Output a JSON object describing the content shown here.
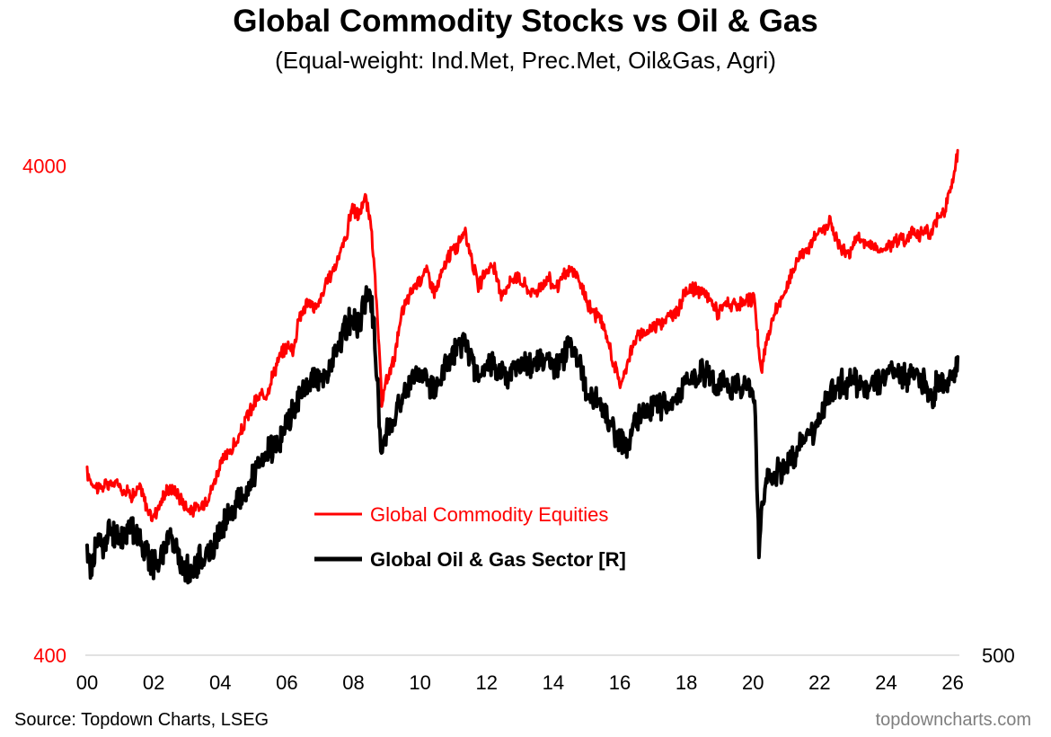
{
  "title": "Global Commodity Stocks vs Oil & Gas",
  "subtitle": "(Equal-weight: Ind.Met, Prec.Met, Oil&Gas, Agri)",
  "source": "Source: Topdown Charts, LSEG",
  "brand": "topdowncharts.com",
  "colors": {
    "commodity": "#ff0000",
    "oilgas": "#000000",
    "axis": "#d9d9d9"
  },
  "chart_data": {
    "type": "line",
    "scale": "log",
    "x_range": [
      2000,
      2026.2
    ],
    "x_ticks": [
      {
        "value": 2000,
        "label": "00"
      },
      {
        "value": 2002,
        "label": "02"
      },
      {
        "value": 2004,
        "label": "04"
      },
      {
        "value": 2006,
        "label": "06"
      },
      {
        "value": 2008,
        "label": "08"
      },
      {
        "value": 2010,
        "label": "10"
      },
      {
        "value": 2012,
        "label": "12"
      },
      {
        "value": 2014,
        "label": "14"
      },
      {
        "value": 2016,
        "label": "16"
      },
      {
        "value": 2018,
        "label": "18"
      },
      {
        "value": 2020,
        "label": "20"
      },
      {
        "value": 2022,
        "label": "22"
      },
      {
        "value": 2024,
        "label": "24"
      },
      {
        "value": 2026,
        "label": "26"
      }
    ],
    "y_left": {
      "range": [
        400,
        5250
      ],
      "ticks": [
        {
          "value": 400,
          "label": "400"
        },
        {
          "value": 4000,
          "label": "4000"
        }
      ]
    },
    "y_right": {
      "range": [
        500,
        1850
      ],
      "ticks": [
        {
          "value": 500,
          "label": "500"
        }
      ]
    },
    "series": [
      {
        "name": "Global Commodity Equities",
        "axis": "left",
        "color": "#ff0000",
        "points": [
          [
            2000.0,
            940
          ],
          [
            2000.15,
            900
          ],
          [
            2000.35,
            880
          ],
          [
            2000.6,
            890
          ],
          [
            2000.9,
            900
          ],
          [
            2001.1,
            870
          ],
          [
            2001.4,
            850
          ],
          [
            2001.6,
            880
          ],
          [
            2001.8,
            800
          ],
          [
            2001.95,
            760
          ],
          [
            2002.2,
            820
          ],
          [
            2002.45,
            880
          ],
          [
            2002.7,
            860
          ],
          [
            2002.9,
            820
          ],
          [
            2003.1,
            790
          ],
          [
            2003.4,
            800
          ],
          [
            2003.7,
            860
          ],
          [
            2004.0,
            980
          ],
          [
            2004.3,
            1050
          ],
          [
            2004.55,
            1100
          ],
          [
            2004.8,
            1230
          ],
          [
            2005.1,
            1330
          ],
          [
            2005.4,
            1380
          ],
          [
            2005.7,
            1580
          ],
          [
            2006.0,
            1720
          ],
          [
            2006.2,
            1680
          ],
          [
            2006.35,
            1950
          ],
          [
            2006.6,
            2100
          ],
          [
            2006.9,
            2050
          ],
          [
            2007.2,
            2300
          ],
          [
            2007.5,
            2550
          ],
          [
            2007.8,
            2900
          ],
          [
            2007.95,
            3300
          ],
          [
            2008.15,
            3150
          ],
          [
            2008.35,
            3450
          ],
          [
            2008.55,
            2950
          ],
          [
            2008.75,
            1800
          ],
          [
            2008.85,
            1300
          ],
          [
            2008.95,
            1420
          ],
          [
            2009.2,
            1600
          ],
          [
            2009.5,
            2050
          ],
          [
            2009.8,
            2250
          ],
          [
            2010.0,
            2350
          ],
          [
            2010.2,
            2450
          ],
          [
            2010.45,
            2200
          ],
          [
            2010.7,
            2450
          ],
          [
            2010.9,
            2650
          ],
          [
            2011.15,
            2750
          ],
          [
            2011.3,
            2950
          ],
          [
            2011.5,
            2700
          ],
          [
            2011.75,
            2250
          ],
          [
            2012.0,
            2450
          ],
          [
            2012.2,
            2500
          ],
          [
            2012.4,
            2200
          ],
          [
            2012.6,
            2250
          ],
          [
            2012.85,
            2400
          ],
          [
            2013.1,
            2300
          ],
          [
            2013.35,
            2200
          ],
          [
            2013.6,
            2250
          ],
          [
            2013.85,
            2350
          ],
          [
            2014.1,
            2250
          ],
          [
            2014.35,
            2400
          ],
          [
            2014.6,
            2450
          ],
          [
            2014.8,
            2300
          ],
          [
            2015.1,
            2050
          ],
          [
            2015.4,
            1950
          ],
          [
            2015.65,
            1750
          ],
          [
            2015.85,
            1550
          ],
          [
            2016.05,
            1420
          ],
          [
            2016.25,
            1620
          ],
          [
            2016.5,
            1780
          ],
          [
            2016.8,
            1830
          ],
          [
            2017.1,
            1900
          ],
          [
            2017.4,
            1950
          ],
          [
            2017.7,
            2000
          ],
          [
            2017.95,
            2200
          ],
          [
            2018.15,
            2250
          ],
          [
            2018.4,
            2200
          ],
          [
            2018.7,
            2150
          ],
          [
            2018.95,
            2000
          ],
          [
            2019.2,
            2100
          ],
          [
            2019.5,
            2050
          ],
          [
            2019.8,
            2100
          ],
          [
            2020.05,
            2150
          ],
          [
            2020.2,
            1600
          ],
          [
            2020.25,
            1500
          ],
          [
            2020.4,
            1750
          ],
          [
            2020.65,
            2000
          ],
          [
            2020.9,
            2150
          ],
          [
            2021.2,
            2450
          ],
          [
            2021.45,
            2650
          ],
          [
            2021.7,
            2750
          ],
          [
            2021.95,
            2900
          ],
          [
            2022.2,
            3000
          ],
          [
            2022.3,
            3100
          ],
          [
            2022.5,
            2850
          ],
          [
            2022.65,
            2700
          ],
          [
            2022.9,
            2650
          ],
          [
            2023.1,
            2850
          ],
          [
            2023.3,
            2800
          ],
          [
            2023.55,
            2750
          ],
          [
            2023.8,
            2700
          ],
          [
            2024.1,
            2750
          ],
          [
            2024.35,
            2850
          ],
          [
            2024.55,
            2800
          ],
          [
            2024.8,
            2950
          ],
          [
            2025.05,
            2900
          ],
          [
            2025.25,
            2950
          ],
          [
            2025.3,
            2800
          ],
          [
            2025.45,
            3050
          ],
          [
            2025.6,
            3150
          ],
          [
            2025.75,
            3250
          ],
          [
            2025.9,
            3550
          ],
          [
            2026.05,
            3850
          ],
          [
            2026.15,
            4300
          ]
        ]
      },
      {
        "name": "Global Oil & Gas Sector [R]",
        "axis": "right",
        "color": "#000000",
        "points": [
          [
            2000.0,
            640
          ],
          [
            2000.1,
            615
          ],
          [
            2000.3,
            660
          ],
          [
            2000.5,
            650
          ],
          [
            2000.7,
            675
          ],
          [
            2000.9,
            660
          ],
          [
            2001.1,
            670
          ],
          [
            2001.35,
            680
          ],
          [
            2001.55,
            660
          ],
          [
            2001.75,
            645
          ],
          [
            2001.95,
            625
          ],
          [
            2002.1,
            620
          ],
          [
            2002.3,
            650
          ],
          [
            2002.5,
            665
          ],
          [
            2002.7,
            640
          ],
          [
            2002.85,
            620
          ],
          [
            2003.05,
            610
          ],
          [
            2003.3,
            625
          ],
          [
            2003.55,
            635
          ],
          [
            2003.75,
            640
          ],
          [
            2004.0,
            675
          ],
          [
            2004.25,
            700
          ],
          [
            2004.5,
            720
          ],
          [
            2004.75,
            735
          ],
          [
            2005.05,
            770
          ],
          [
            2005.3,
            795
          ],
          [
            2005.55,
            820
          ],
          [
            2005.8,
            840
          ],
          [
            2006.05,
            880
          ],
          [
            2006.3,
            920
          ],
          [
            2006.55,
            940
          ],
          [
            2006.8,
            970
          ],
          [
            2007.05,
            965
          ],
          [
            2007.3,
            990
          ],
          [
            2007.55,
            1050
          ],
          [
            2007.75,
            1090
          ],
          [
            2007.95,
            1120
          ],
          [
            2008.2,
            1100
          ],
          [
            2008.45,
            1210
          ],
          [
            2008.6,
            1120
          ],
          [
            2008.75,
            910
          ],
          [
            2008.82,
            810
          ],
          [
            2008.95,
            850
          ],
          [
            2009.2,
            880
          ],
          [
            2009.5,
            935
          ],
          [
            2009.8,
            970
          ],
          [
            2010.05,
            990
          ],
          [
            2010.3,
            950
          ],
          [
            2010.55,
            965
          ],
          [
            2010.8,
            1000
          ],
          [
            2011.05,
            1030
          ],
          [
            2011.3,
            1065
          ],
          [
            2011.55,
            1010
          ],
          [
            2011.8,
            960
          ],
          [
            2012.05,
            1010
          ],
          [
            2012.3,
            990
          ],
          [
            2012.55,
            975
          ],
          [
            2012.8,
            990
          ],
          [
            2013.05,
            1005
          ],
          [
            2013.3,
            1000
          ],
          [
            2013.55,
            1010
          ],
          [
            2013.8,
            1005
          ],
          [
            2014.05,
            995
          ],
          [
            2014.3,
            1020
          ],
          [
            2014.5,
            1055
          ],
          [
            2014.75,
            1005
          ],
          [
            2015.0,
            940
          ],
          [
            2015.25,
            920
          ],
          [
            2015.5,
            895
          ],
          [
            2015.75,
            860
          ],
          [
            2016.05,
            830
          ],
          [
            2016.25,
            830
          ],
          [
            2016.5,
            885
          ],
          [
            2016.75,
            895
          ],
          [
            2016.95,
            905
          ],
          [
            2017.2,
            905
          ],
          [
            2017.45,
            920
          ],
          [
            2017.7,
            930
          ],
          [
            2017.95,
            955
          ],
          [
            2018.2,
            970
          ],
          [
            2018.45,
            985
          ],
          [
            2018.7,
            975
          ],
          [
            2018.9,
            945
          ],
          [
            2019.1,
            960
          ],
          [
            2019.35,
            945
          ],
          [
            2019.6,
            955
          ],
          [
            2019.85,
            960
          ],
          [
            2020.05,
            930
          ],
          [
            2020.12,
            760
          ],
          [
            2020.18,
            645
          ],
          [
            2020.25,
            700
          ],
          [
            2020.4,
            760
          ],
          [
            2020.6,
            775
          ],
          [
            2020.85,
            770
          ],
          [
            2021.1,
            800
          ],
          [
            2021.35,
            820
          ],
          [
            2021.6,
            840
          ],
          [
            2021.85,
            855
          ],
          [
            2022.05,
            885
          ],
          [
            2022.3,
            940
          ],
          [
            2022.55,
            965
          ],
          [
            2022.75,
            950
          ],
          [
            2022.9,
            960
          ],
          [
            2023.1,
            965
          ],
          [
            2023.35,
            950
          ],
          [
            2023.6,
            960
          ],
          [
            2023.85,
            970
          ],
          [
            2024.1,
            985
          ],
          [
            2024.35,
            975
          ],
          [
            2024.55,
            970
          ],
          [
            2024.8,
            965
          ],
          [
            2025.0,
            960
          ],
          [
            2025.15,
            955
          ],
          [
            2025.3,
            930
          ],
          [
            2025.5,
            950
          ],
          [
            2025.7,
            955
          ],
          [
            2025.9,
            960
          ],
          [
            2026.05,
            975
          ],
          [
            2026.15,
            1020
          ]
        ]
      }
    ],
    "legend": {
      "position": "lower-center",
      "entries": [
        "Global Commodity Equities",
        "Global Oil & Gas Sector [R]"
      ]
    }
  }
}
